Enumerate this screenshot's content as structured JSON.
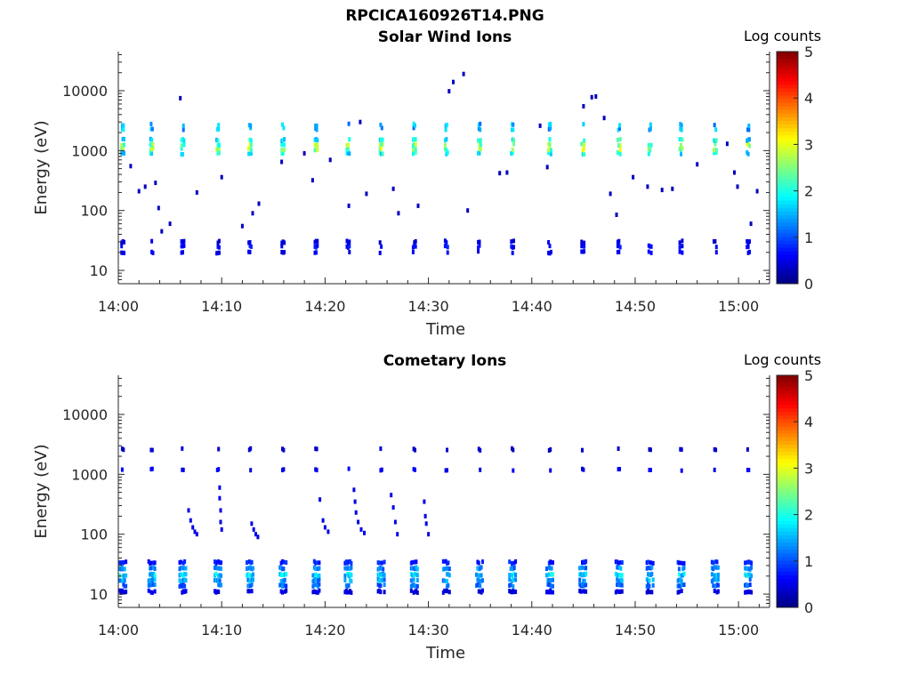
{
  "figure": {
    "title": "RPCICA160926T14.PNG"
  },
  "chart_data": [
    {
      "type": "heatmap",
      "title": "Solar Wind Ions",
      "xlabel": "Time",
      "ylabel": "Energy (eV)",
      "yscale": "log",
      "ylim": [
        6,
        45000
      ],
      "xlim": [
        "14:00",
        "15:03"
      ],
      "x_ticks": [
        "14:00",
        "14:10",
        "14:20",
        "14:30",
        "14:40",
        "14:50",
        "15:00"
      ],
      "y_ticks": [
        "10",
        "100",
        "1000",
        "10000"
      ],
      "colorbar": {
        "label": "Log counts",
        "range": [
          0,
          5
        ],
        "ticks": [
          "0",
          "1",
          "2",
          "3",
          "4",
          "5"
        ],
        "colormap": "jet"
      },
      "sweep_times_min": [
        0.5,
        3.3,
        6.3,
        9.7,
        12.8,
        16.0,
        19.2,
        22.3,
        25.5,
        28.7,
        31.8,
        35.0,
        38.2,
        41.8,
        45.0,
        48.5,
        51.5,
        54.5,
        57.8,
        61.0
      ],
      "main_band": {
        "energies_eV": [
          900,
          1050,
          1250,
          1500
        ],
        "log_counts": [
          2.0,
          2.7,
          2.7,
          2.0
        ]
      },
      "upper_band": {
        "energies_eV": [
          2300,
          2700
        ],
        "log_counts": [
          1.6,
          1.6
        ]
      },
      "low_band": {
        "energies_eV": [
          20,
          25,
          30
        ],
        "log_counts": [
          0.6,
          0.7,
          0.5
        ]
      },
      "scattered_points": [
        [
          1.2,
          550
        ],
        [
          2.0,
          210
        ],
        [
          2.6,
          250
        ],
        [
          3.6,
          290
        ],
        [
          3.9,
          110
        ],
        [
          4.2,
          45
        ],
        [
          5.0,
          60
        ],
        [
          6.0,
          7500
        ],
        [
          7.6,
          200
        ],
        [
          10.0,
          360
        ],
        [
          12.0,
          55
        ],
        [
          13.0,
          90
        ],
        [
          13.6,
          130
        ],
        [
          15.8,
          650
        ],
        [
          18.0,
          900
        ],
        [
          18.8,
          320
        ],
        [
          20.5,
          700
        ],
        [
          22.3,
          120
        ],
        [
          23.4,
          3000
        ],
        [
          24.0,
          190
        ],
        [
          26.6,
          230
        ],
        [
          27.1,
          90
        ],
        [
          29.0,
          120
        ],
        [
          32.0,
          9800
        ],
        [
          32.4,
          14000
        ],
        [
          33.4,
          19000
        ],
        [
          33.8,
          100
        ],
        [
          36.9,
          420
        ],
        [
          37.6,
          430
        ],
        [
          40.8,
          2600
        ],
        [
          41.5,
          530
        ],
        [
          45.0,
          5500
        ],
        [
          45.8,
          7800
        ],
        [
          46.2,
          8000
        ],
        [
          47.0,
          3500
        ],
        [
          47.6,
          190
        ],
        [
          48.2,
          85
        ],
        [
          49.8,
          360
        ],
        [
          51.2,
          250
        ],
        [
          52.6,
          220
        ],
        [
          53.6,
          230
        ],
        [
          56.0,
          590
        ],
        [
          58.9,
          1300
        ],
        [
          59.6,
          430
        ],
        [
          59.9,
          250
        ],
        [
          61.2,
          60
        ],
        [
          61.8,
          210
        ]
      ]
    },
    {
      "type": "heatmap",
      "title": "Cometary Ions",
      "xlabel": "Time",
      "ylabel": "Energy (eV)",
      "yscale": "log",
      "ylim": [
        6,
        45000
      ],
      "xlim": [
        "14:00",
        "15:03"
      ],
      "x_ticks": [
        "14:00",
        "14:10",
        "14:20",
        "14:30",
        "14:40",
        "14:50",
        "15:00"
      ],
      "y_ticks": [
        "10",
        "100",
        "1000",
        "10000"
      ],
      "colorbar": {
        "label": "Log counts",
        "range": [
          0,
          5
        ],
        "ticks": [
          "0",
          "1",
          "2",
          "3",
          "4",
          "5"
        ],
        "colormap": "jet"
      },
      "sweep_times_min": [
        0.5,
        3.3,
        6.3,
        9.7,
        12.8,
        16.0,
        19.2,
        22.3,
        25.5,
        28.7,
        31.8,
        35.0,
        38.2,
        41.8,
        45.0,
        48.5,
        51.5,
        54.5,
        57.8,
        61.0
      ],
      "main_band": {
        "energies_eV": [
          11,
          14,
          17,
          21,
          27,
          34
        ],
        "log_counts": [
          0.5,
          1.2,
          1.5,
          1.8,
          1.4,
          0.8
        ]
      },
      "upper_band": {
        "energies_eV": [
          1200,
          2600
        ],
        "log_counts": [
          0.6,
          0.4
        ]
      },
      "dispersion_traces": [
        {
          "t": [
            6.8,
            7.0,
            7.2,
            7.4,
            7.6
          ],
          "e": [
            250,
            170,
            130,
            110,
            100
          ]
        },
        {
          "t": [
            9.8,
            9.8,
            9.9,
            9.9,
            10.0
          ],
          "e": [
            600,
            400,
            250,
            160,
            120
          ]
        },
        {
          "t": [
            12.9,
            13.1,
            13.3,
            13.5
          ],
          "e": [
            150,
            120,
            100,
            90
          ]
        },
        {
          "t": [
            19.5,
            19.8,
            20.0,
            20.3
          ],
          "e": [
            380,
            170,
            130,
            110
          ]
        },
        {
          "t": [
            22.8,
            22.9,
            23.0,
            23.2,
            23.5,
            23.8
          ],
          "e": [
            550,
            350,
            230,
            160,
            120,
            105
          ]
        },
        {
          "t": [
            26.4,
            26.6,
            26.8,
            27.0
          ],
          "e": [
            450,
            280,
            160,
            100
          ]
        },
        {
          "t": [
            29.6,
            29.7,
            29.8,
            30.0
          ],
          "e": [
            350,
            200,
            150,
            100
          ]
        }
      ]
    }
  ]
}
